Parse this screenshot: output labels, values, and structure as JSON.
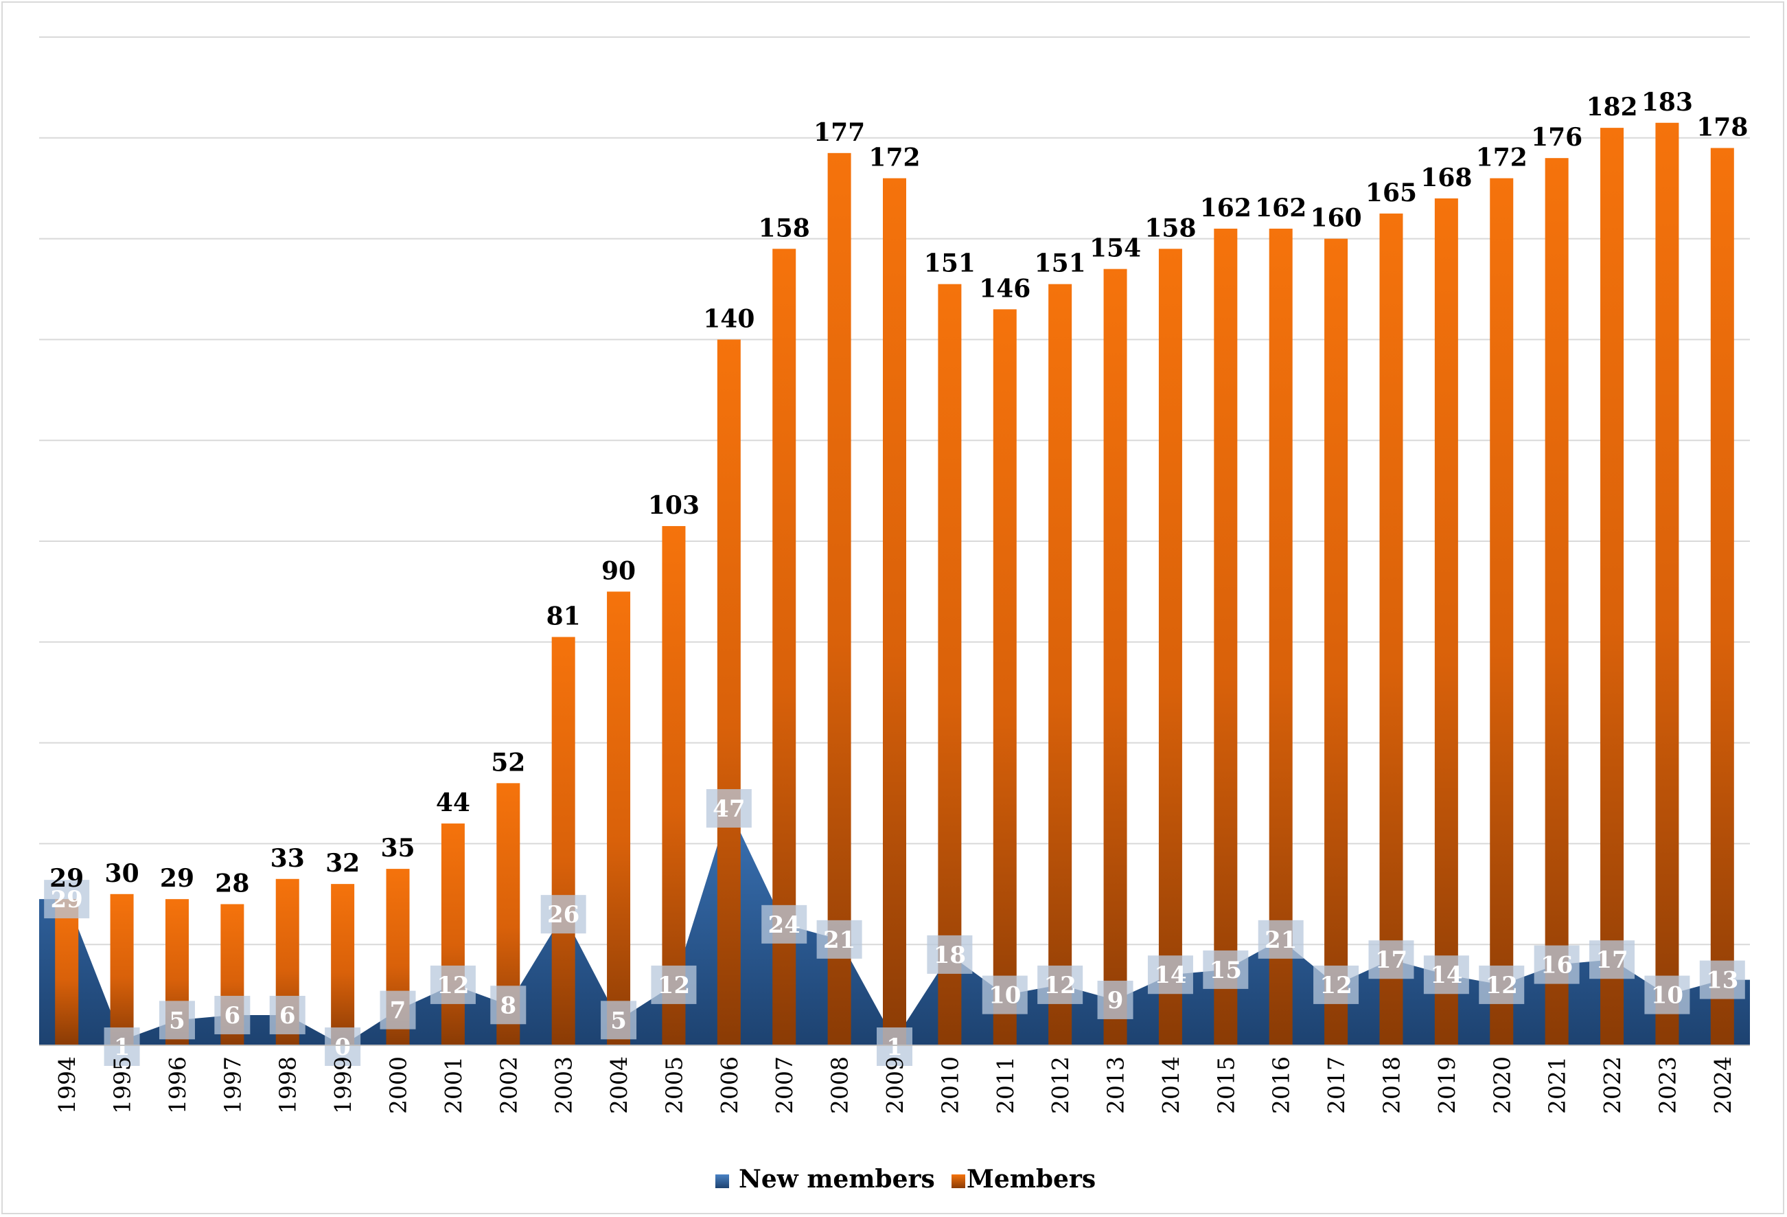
{
  "chart_data": {
    "type": "bar",
    "categories": [
      "1994",
      "1995",
      "1996",
      "1997",
      "1998",
      "1999",
      "2000",
      "2001",
      "2002",
      "2003",
      "2004",
      "2005",
      "2006",
      "2007",
      "2008",
      "2009",
      "2010",
      "2011",
      "2012",
      "2013",
      "2014",
      "2015",
      "2016",
      "2017",
      "2018",
      "2019",
      "2020",
      "2021",
      "2022",
      "2023",
      "2024"
    ],
    "series": [
      {
        "name": "New members",
        "type": "area",
        "color": "#2e5f96",
        "values": [
          29,
          1,
          5,
          6,
          6,
          0,
          7,
          12,
          8,
          26,
          5,
          12,
          47,
          24,
          21,
          1,
          18,
          10,
          12,
          9,
          14,
          15,
          21,
          12,
          17,
          14,
          12,
          16,
          17,
          10,
          13
        ]
      },
      {
        "name": "Members",
        "type": "bar",
        "color": "#e8690b",
        "values": [
          29,
          30,
          29,
          28,
          33,
          32,
          35,
          44,
          52,
          81,
          90,
          103,
          140,
          158,
          177,
          172,
          151,
          146,
          151,
          154,
          158,
          162,
          162,
          160,
          165,
          168,
          172,
          176,
          182,
          183,
          178
        ]
      }
    ],
    "ylim": [
      0,
      200
    ],
    "y_gridline_step": 20,
    "y_tick_labels_shown": false,
    "grid": true,
    "legend_position": "bottom",
    "xlabel": "",
    "ylabel": "",
    "title": ""
  }
}
